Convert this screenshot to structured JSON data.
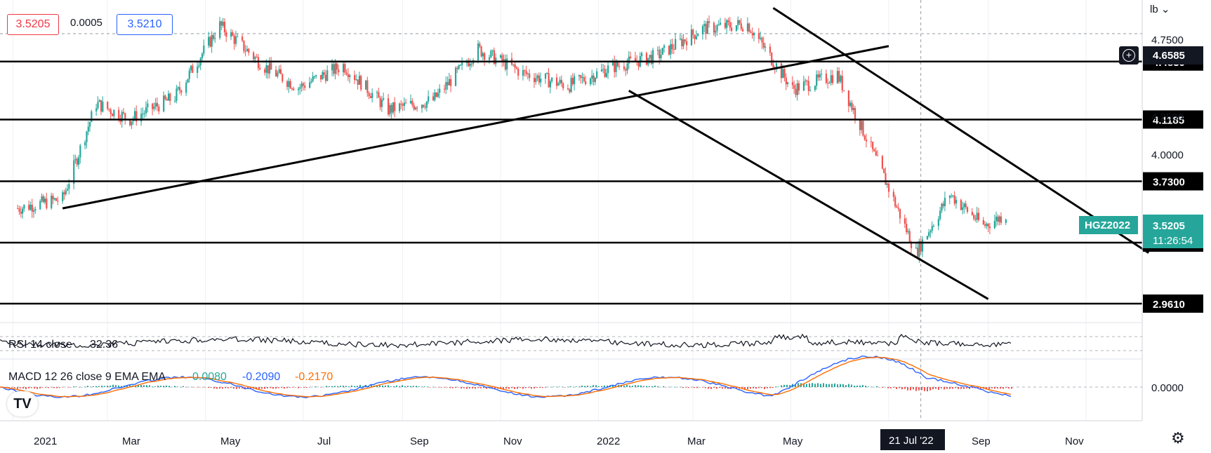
{
  "header": {
    "bid": "3.5205",
    "spread": "0.0005",
    "ask": "3.5210",
    "unit": "lb"
  },
  "price_axis": {
    "ticks": [
      "4.7500",
      "4.2500",
      "4.0000"
    ],
    "marker_price": "4.6585"
  },
  "levels": [
    {
      "value": 4.483,
      "label": "4.4830"
    },
    {
      "value": 4.1185,
      "label": "4.1185"
    },
    {
      "value": 3.73,
      "label": "3.7300"
    },
    {
      "value": 3.3445,
      "label": "3.3445"
    },
    {
      "value": 2.961,
      "label": "2.9610"
    }
  ],
  "symbol_tag": {
    "symbol": "HGZ2022",
    "price": "3.5205",
    "countdown": "11:26:54",
    "color": "#26a69a"
  },
  "time_axis": {
    "labels": [
      "2021",
      "Mar",
      "May",
      "Jul",
      "Sep",
      "Nov",
      "2022",
      "Mar",
      "May",
      "Sep",
      "Nov"
    ],
    "crosshair_label": "21 Jul '22"
  },
  "rsi": {
    "label": "RSI 14 close",
    "value": "32.36"
  },
  "macd": {
    "label": "MACD 12 26 close 9 EMA EMA",
    "hist": "0.0080",
    "macd": "-0.2090",
    "signal": "-0.2170",
    "zero_tick": "0.0000",
    "colors": {
      "hist": "#26a69a",
      "macd": "#2962ff",
      "signal": "#ff6d00"
    }
  },
  "colors": {
    "up": "#26a69a",
    "down": "#ef5350",
    "level": "#000000"
  },
  "chart_data": {
    "type": "candlestick",
    "symbol": "HGZ2022",
    "ylim": [
      2.93,
      4.87
    ],
    "horizontal_levels": [
      4.483,
      4.1185,
      3.73,
      3.3445,
      2.961
    ],
    "close_series": {
      "x": [
        "2021-01-04",
        "2021-02-01",
        "2021-02-22",
        "2021-03-15",
        "2021-04-12",
        "2021-05-10",
        "2021-06-07",
        "2021-06-28",
        "2021-07-26",
        "2021-08-23",
        "2021-09-20",
        "2021-10-18",
        "2021-11-15",
        "2021-12-13",
        "2022-01-10",
        "2022-02-07",
        "2022-03-07",
        "2022-04-04",
        "2022-05-02",
        "2022-05-30",
        "2022-06-27",
        "2022-07-18",
        "2022-08-08",
        "2022-08-29",
        "2022-09-12"
      ],
      "y": [
        3.56,
        3.62,
        4.22,
        4.12,
        4.26,
        4.71,
        4.45,
        4.32,
        4.46,
        4.18,
        4.24,
        4.56,
        4.41,
        4.33,
        4.45,
        4.52,
        4.69,
        4.72,
        4.31,
        4.4,
        3.78,
        3.28,
        3.65,
        3.45,
        3.5205
      ]
    },
    "trendlines": [
      {
        "name": "rising support",
        "from": [
          "2021-02-01",
          3.56
        ],
        "to": [
          "2022-07-01",
          4.58
        ]
      },
      {
        "name": "channel upper",
        "from": [
          "2022-04-20",
          4.82
        ],
        "to": [
          "2022-12-10",
          3.28
        ]
      },
      {
        "name": "channel lower",
        "from": [
          "2022-01-20",
          4.3
        ],
        "to": [
          "2022-09-01",
          2.99
        ]
      }
    ]
  }
}
